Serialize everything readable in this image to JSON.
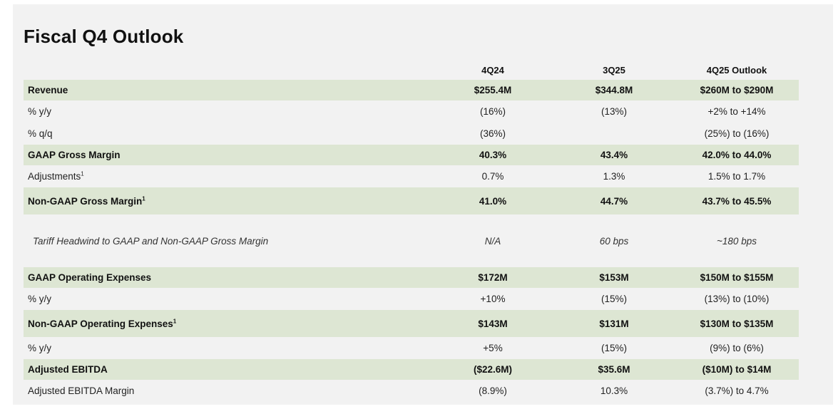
{
  "title": "Fiscal Q4 Outlook",
  "columns": [
    "4Q24",
    "3Q25",
    "4Q25 Outlook"
  ],
  "rows": [
    {
      "label": "Revenue",
      "sup": "",
      "values": [
        "$255.4M",
        "$344.8M",
        "$260M to $290M"
      ],
      "style": "shaded-bold"
    },
    {
      "label": "% y/y",
      "sup": "",
      "values": [
        "(16%)",
        "(13%)",
        "+2% to +14%"
      ],
      "style": "plain"
    },
    {
      "label": "% q/q",
      "sup": "",
      "values": [
        "(36%)",
        "",
        "(25%) to (16%)"
      ],
      "style": "plain"
    },
    {
      "label": "GAAP Gross Margin",
      "sup": "",
      "values": [
        "40.3%",
        "43.4%",
        "42.0% to 44.0%"
      ],
      "style": "shaded-bold"
    },
    {
      "label": "Adjustments",
      "sup": "1",
      "values": [
        "0.7%",
        "1.3%",
        "1.5% to 1.7%"
      ],
      "style": "plain"
    },
    {
      "label": "Non-GAAP Gross Margin",
      "sup": "1",
      "values": [
        "41.0%",
        "44.7%",
        "43.7% to 45.5%"
      ],
      "style": "shaded-bold-tall"
    },
    {
      "label": "Tariff Headwind to GAAP and Non-GAAP Gross Margin",
      "sup": "",
      "values": [
        "N/A",
        "60 bps",
        "~180 bps"
      ],
      "style": "italic"
    },
    {
      "label": "GAAP Operating Expenses",
      "sup": "",
      "values": [
        "$172M",
        "$153M",
        "$150M to $155M"
      ],
      "style": "shaded-bold"
    },
    {
      "label": "% y/y",
      "sup": "",
      "values": [
        "+10%",
        "(15%)",
        "(13%) to (10%)"
      ],
      "style": "plain"
    },
    {
      "label": "Non-GAAP Operating Expenses",
      "sup": "1",
      "values": [
        "$143M",
        "$131M",
        "$130M to $135M"
      ],
      "style": "shaded-bold-tall"
    },
    {
      "label": "% y/y",
      "sup": "",
      "values": [
        "+5%",
        "(15%)",
        "(9%) to (6%)"
      ],
      "style": "plain"
    },
    {
      "label": "Adjusted EBITDA",
      "sup": "",
      "values": [
        "($22.6M)",
        "$35.6M",
        "($10M) to $14M"
      ],
      "style": "shaded-bold"
    },
    {
      "label": "Adjusted EBITDA Margin",
      "sup": "",
      "values": [
        "(8.9%)",
        "10.3%",
        "(3.7%) to 4.7%"
      ],
      "style": "plain"
    }
  ],
  "colors": {
    "row_shade": "#dde6d3",
    "slide_bg": "#f2f2f2"
  }
}
